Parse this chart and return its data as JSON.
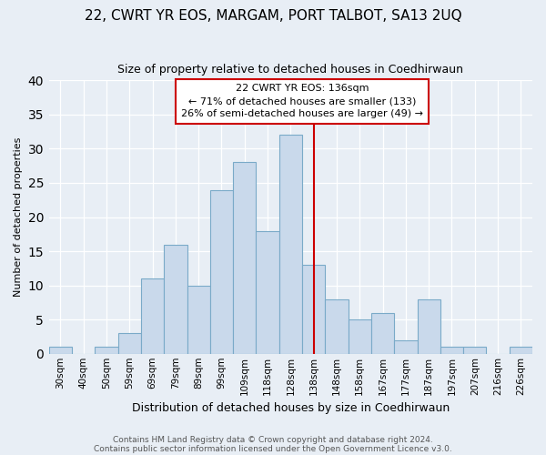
{
  "title1": "22, CWRT YR EOS, MARGAM, PORT TALBOT, SA13 2UQ",
  "title2": "Size of property relative to detached houses in Coedhirwaun",
  "xlabel": "Distribution of detached houses by size in Coedhirwaun",
  "ylabel": "Number of detached properties",
  "categories": [
    "30sqm",
    "40sqm",
    "50sqm",
    "59sqm",
    "69sqm",
    "79sqm",
    "89sqm",
    "99sqm",
    "109sqm",
    "118sqm",
    "128sqm",
    "138sqm",
    "148sqm",
    "158sqm",
    "167sqm",
    "177sqm",
    "187sqm",
    "197sqm",
    "207sqm",
    "216sqm",
    "226sqm"
  ],
  "values": [
    1,
    0,
    1,
    3,
    11,
    16,
    10,
    24,
    28,
    18,
    32,
    13,
    8,
    5,
    6,
    2,
    8,
    1,
    1,
    0,
    1
  ],
  "bar_color": "#c9d9eb",
  "bar_edge_color": "#7aaac8",
  "annotation_title": "22 CWRT YR EOS: 136sqm",
  "annotation_line1": "← 71% of detached houses are smaller (133)",
  "annotation_line2": "26% of semi-detached houses are larger (49) →",
  "vline_color": "#cc0000",
  "vline_position": 11,
  "ylim": [
    0,
    40
  ],
  "yticks": [
    0,
    5,
    10,
    15,
    20,
    25,
    30,
    35,
    40
  ],
  "footer1": "Contains HM Land Registry data © Crown copyright and database right 2024.",
  "footer2": "Contains public sector information licensed under the Open Government Licence v3.0.",
  "bg_color": "#e8eef5",
  "plot_bg_color": "#e8eef5",
  "title1_fontsize": 11,
  "title2_fontsize": 9,
  "xlabel_fontsize": 9,
  "ylabel_fontsize": 8,
  "tick_fontsize": 7.5,
  "annot_fontsize": 8,
  "footer_fontsize": 6.5
}
